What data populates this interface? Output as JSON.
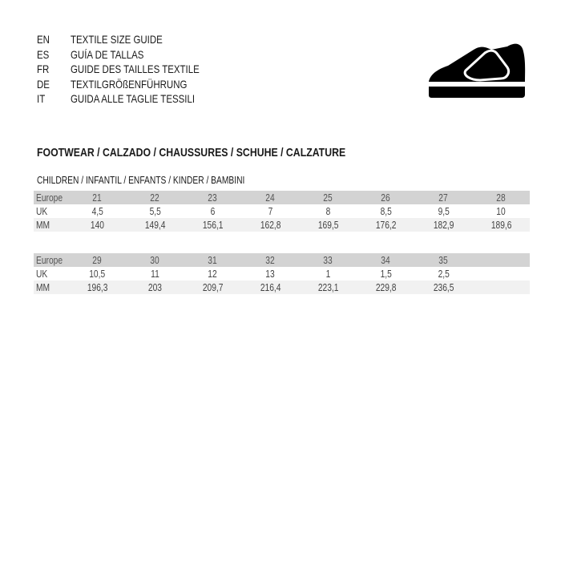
{
  "languages": [
    {
      "code": "EN",
      "title": "TEXTILE SIZE GUIDE"
    },
    {
      "code": "ES",
      "title": "GUÍA DE TALLAS"
    },
    {
      "code": "FR",
      "title": "GUIDE DES TAILLES TEXTILE"
    },
    {
      "code": "DE",
      "title": "TEXTILGRÖßENFÜHRUNG"
    },
    {
      "code": "IT",
      "title": "GUIDA ALLE TAGLIE TESSILI"
    }
  ],
  "icon": "shoe-velcro-icon",
  "section_title": "FOOTWEAR / CALZADO / CHAUSSURES / SCHUHE / CALZATURE",
  "subsection_title": "CHILDREN / INFANTIL / ENFANTS / KINDER / BAMBINI",
  "row_labels": {
    "europe": "Europe",
    "uk": "UK",
    "mm": "MM"
  },
  "tables": [
    {
      "europe": [
        "21",
        "22",
        "23",
        "24",
        "25",
        "26",
        "27",
        "28"
      ],
      "uk": [
        "4,5",
        "5,5",
        "6",
        "7",
        "8",
        "8,5",
        "9,5",
        "10"
      ],
      "mm": [
        "140",
        "149,4",
        "156,1",
        "162,8",
        "169,5",
        "176,2",
        "182,9",
        "189,6"
      ]
    },
    {
      "europe": [
        "29",
        "30",
        "31",
        "32",
        "33",
        "34",
        "35",
        ""
      ],
      "uk": [
        "10,5",
        "11",
        "12",
        "13",
        "1",
        "1,5",
        "2,5",
        ""
      ],
      "mm": [
        "196,3",
        "203",
        "209,7",
        "216,4",
        "223,1",
        "229,8",
        "236,5",
        ""
      ]
    }
  ]
}
